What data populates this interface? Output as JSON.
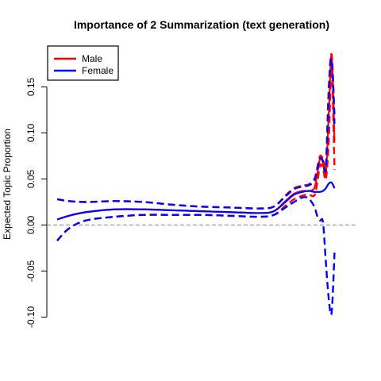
{
  "chart_data": {
    "type": "line",
    "title": "Importance of 2 Summarization (text generation)",
    "ylabel": "Expected Topic Proportion",
    "xlabel": "",
    "ylim": [
      -0.1,
      0.18
    ],
    "yticks": [
      -0.1,
      -0.05,
      0.0,
      0.05,
      0.1,
      0.15
    ],
    "ytick_labels": [
      "-0.10",
      "-0.05",
      "0.00",
      "0.05",
      "0.10",
      "0.15"
    ],
    "xlim": [
      0,
      100
    ],
    "zero_line": 0,
    "legend": {
      "placement": "top-left",
      "entries": [
        "Male",
        "Female"
      ]
    },
    "colors": {
      "male": "#ff0000",
      "female": "#0000ff",
      "zero_line": "#888888"
    },
    "series": [
      {
        "name": "Male",
        "role": "mean",
        "style": "solid",
        "x": [
          0,
          4,
          10,
          20,
          30,
          40,
          50,
          60,
          70,
          75,
          79,
          82,
          85,
          87,
          89,
          90,
          91,
          92,
          93,
          94,
          95,
          96
        ],
        "y": [
          0.006,
          0.01,
          0.014,
          0.017,
          0.017,
          0.016,
          0.015,
          0.014,
          0.013,
          0.015,
          0.026,
          0.034,
          0.037,
          0.037,
          0.04,
          0.055,
          0.072,
          0.068,
          0.055,
          0.12,
          0.185,
          0.09
        ]
      },
      {
        "name": "Female",
        "role": "mean",
        "style": "solid",
        "x": [
          0,
          4,
          10,
          20,
          30,
          40,
          50,
          60,
          70,
          75,
          79,
          82,
          85,
          87,
          89,
          90,
          91,
          92,
          93,
          94,
          95,
          96
        ],
        "y": [
          0.006,
          0.01,
          0.014,
          0.017,
          0.017,
          0.016,
          0.015,
          0.014,
          0.013,
          0.015,
          0.025,
          0.033,
          0.036,
          0.037,
          0.036,
          0.036,
          0.036,
          0.037,
          0.04,
          0.045,
          0.046,
          0.04
        ]
      },
      {
        "name": "Male upper",
        "role": "ci",
        "style": "dashed",
        "x": [
          0,
          4,
          10,
          20,
          30,
          40,
          50,
          60,
          70,
          75,
          79,
          82,
          85,
          87,
          89,
          90,
          91,
          92,
          93,
          94,
          95,
          96
        ],
        "y": [
          0.028,
          0.026,
          0.025,
          0.026,
          0.025,
          0.022,
          0.02,
          0.019,
          0.018,
          0.02,
          0.032,
          0.04,
          0.043,
          0.044,
          0.05,
          0.062,
          0.075,
          0.072,
          0.065,
          0.15,
          0.185,
          0.12
        ]
      },
      {
        "name": "Male lower",
        "role": "ci",
        "style": "dashed",
        "x": [
          0,
          4,
          10,
          20,
          30,
          40,
          50,
          60,
          70,
          75,
          79,
          82,
          85,
          87,
          89,
          90,
          91,
          92,
          93,
          94,
          95,
          96
        ],
        "y": [
          -0.017,
          -0.004,
          0.005,
          0.009,
          0.011,
          0.011,
          0.011,
          0.01,
          0.009,
          0.011,
          0.021,
          0.028,
          0.032,
          0.033,
          0.032,
          0.045,
          0.065,
          0.062,
          0.05,
          0.09,
          0.17,
          0.06
        ]
      },
      {
        "name": "Female upper",
        "role": "ci",
        "style": "dashed",
        "x": [
          0,
          4,
          10,
          20,
          30,
          40,
          50,
          60,
          70,
          75,
          79,
          82,
          85,
          87,
          89,
          90,
          91,
          92,
          93,
          94,
          95,
          96
        ],
        "y": [
          0.028,
          0.026,
          0.025,
          0.026,
          0.025,
          0.022,
          0.02,
          0.019,
          0.018,
          0.02,
          0.031,
          0.039,
          0.042,
          0.043,
          0.048,
          0.06,
          0.072,
          0.07,
          0.062,
          0.14,
          0.18,
          0.11
        ]
      },
      {
        "name": "Female lower",
        "role": "ci",
        "style": "dashed",
        "x": [
          0,
          4,
          10,
          20,
          30,
          40,
          50,
          60,
          70,
          75,
          79,
          82,
          85,
          87,
          89,
          90,
          91,
          92,
          93,
          94,
          95,
          96
        ],
        "y": [
          -0.017,
          -0.004,
          0.005,
          0.009,
          0.011,
          0.011,
          0.011,
          0.01,
          0.009,
          0.011,
          0.019,
          0.025,
          0.03,
          0.029,
          0.02,
          0.01,
          0.005,
          0.003,
          -0.04,
          -0.08,
          -0.095,
          -0.03
        ]
      }
    ]
  }
}
